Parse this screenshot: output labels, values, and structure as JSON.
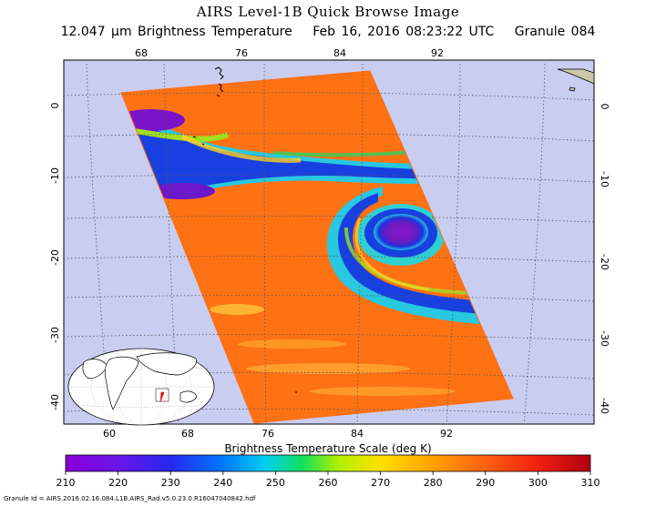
{
  "header": {
    "title": "AIRS Level-1B Quick Browse Image",
    "wavelength": "12.047 μm Brightness Temperature",
    "datetime": "Feb 16, 2016 08:23:22 UTC",
    "granule": "Granule 084"
  },
  "map": {
    "top_lon_labels": [
      "68",
      "76",
      "84",
      "92"
    ],
    "bottom_lon_labels": [
      "60",
      "68",
      "76",
      "84",
      "92"
    ],
    "left_lat_labels": [
      "0",
      "-10",
      "-20",
      "-30",
      "-40"
    ],
    "right_lat_labels": [
      "0",
      "-10",
      "-20",
      "-30",
      "-40"
    ],
    "colors": {
      "background": "#c9cdf0",
      "grid": "#444444",
      "warm": "#ff6a10",
      "cold": "#7a12c8"
    }
  },
  "colorbar": {
    "title": "Brightness Temperature Scale (deg K)",
    "ticks": [
      "210",
      "220",
      "230",
      "240",
      "250",
      "260",
      "270",
      "280",
      "290",
      "300",
      "310"
    ],
    "min": 210,
    "max": 310
  },
  "footer": {
    "granule_id": "Granule Id = AIRS.2016.02.16.084.L1B.AIRS_Rad.v5.0.23.0.R16047040842.hdf"
  }
}
